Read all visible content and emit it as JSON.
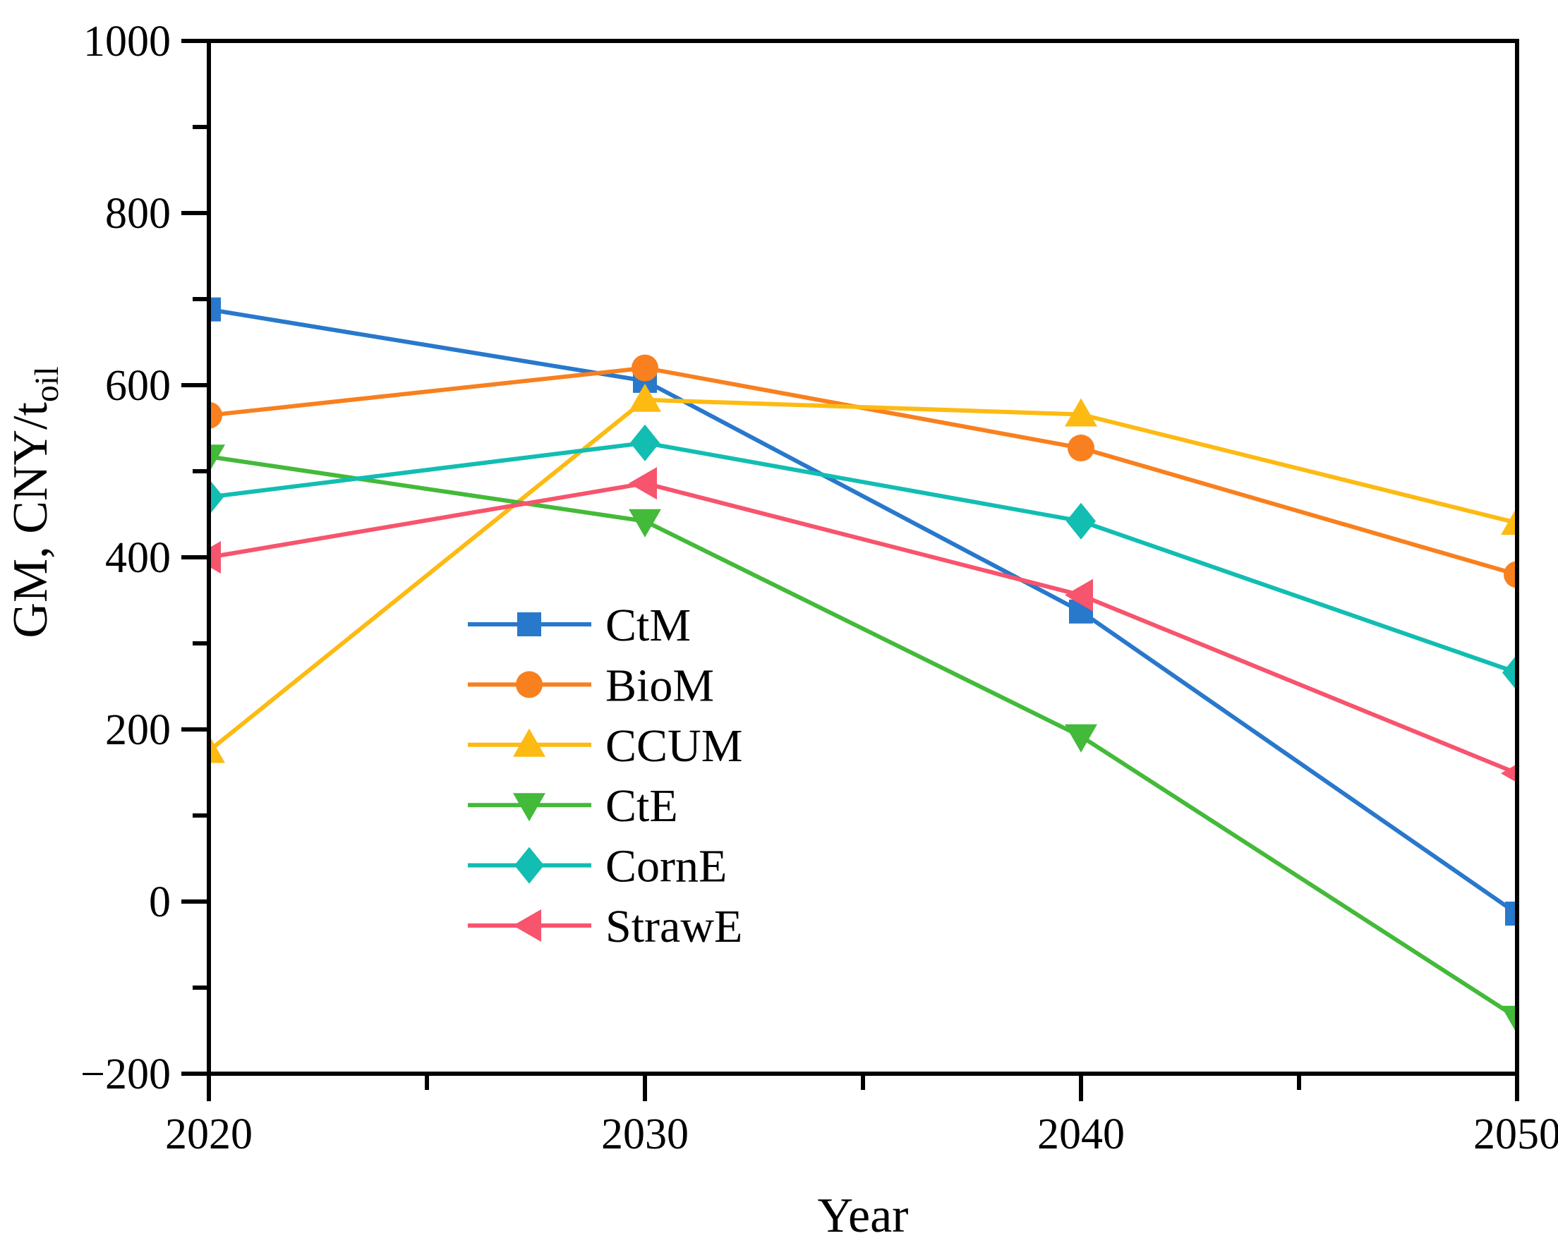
{
  "page": {
    "background": "#ffffff",
    "text_color": "#000000"
  },
  "chart_data": {
    "type": "line",
    "title": "",
    "xlabel": "Year",
    "ylabel": "GM, CNY/t",
    "ylabel_subscript": "oil",
    "x": [
      2020,
      2030,
      2040,
      2050
    ],
    "series": [
      {
        "name": "CtM",
        "color": "#2878CC",
        "marker": "square",
        "values": [
          688,
          605,
          337,
          -14
        ]
      },
      {
        "name": "BioM",
        "color": "#F8801F",
        "marker": "circle",
        "values": [
          565,
          620,
          527,
          380
        ]
      },
      {
        "name": "CCUM",
        "color": "#FDBA12",
        "marker": "triangle-up",
        "values": [
          175,
          583,
          566,
          440
        ]
      },
      {
        "name": "CtE",
        "color": "#43BA39",
        "marker": "triangle-down",
        "values": [
          517,
          442,
          192,
          -135
        ]
      },
      {
        "name": "CornE",
        "color": "#12BDB2",
        "marker": "diamond",
        "values": [
          470,
          533,
          442,
          266
        ]
      },
      {
        "name": "StrawE",
        "color": "#F7546D",
        "marker": "triangle-left",
        "values": [
          400,
          486,
          356,
          149
        ]
      }
    ],
    "xlim": [
      2020,
      2050
    ],
    "ylim": [
      -200,
      1000
    ],
    "x_major_ticks": [
      2020,
      2030,
      2040,
      2050
    ],
    "x_tick_labels": [
      "2020",
      "2030",
      "2040",
      "2050"
    ],
    "x_minor_ticks": [
      2025,
      2035,
      2045
    ],
    "y_major_ticks": [
      1000,
      800,
      600,
      400,
      200,
      0,
      -200
    ],
    "y_tick_labels": [
      "1000",
      "800",
      "600",
      "400",
      "200",
      "0",
      "−200"
    ],
    "y_minor_ticks": [
      900,
      700,
      500,
      300,
      100,
      -100
    ],
    "grid": false,
    "legend_position": "inside-center-left",
    "legend_labels": [
      "CtM",
      "BioM",
      "CCUM",
      "CtE",
      "CornE",
      "StrawE"
    ],
    "axis_color": "#000000"
  }
}
